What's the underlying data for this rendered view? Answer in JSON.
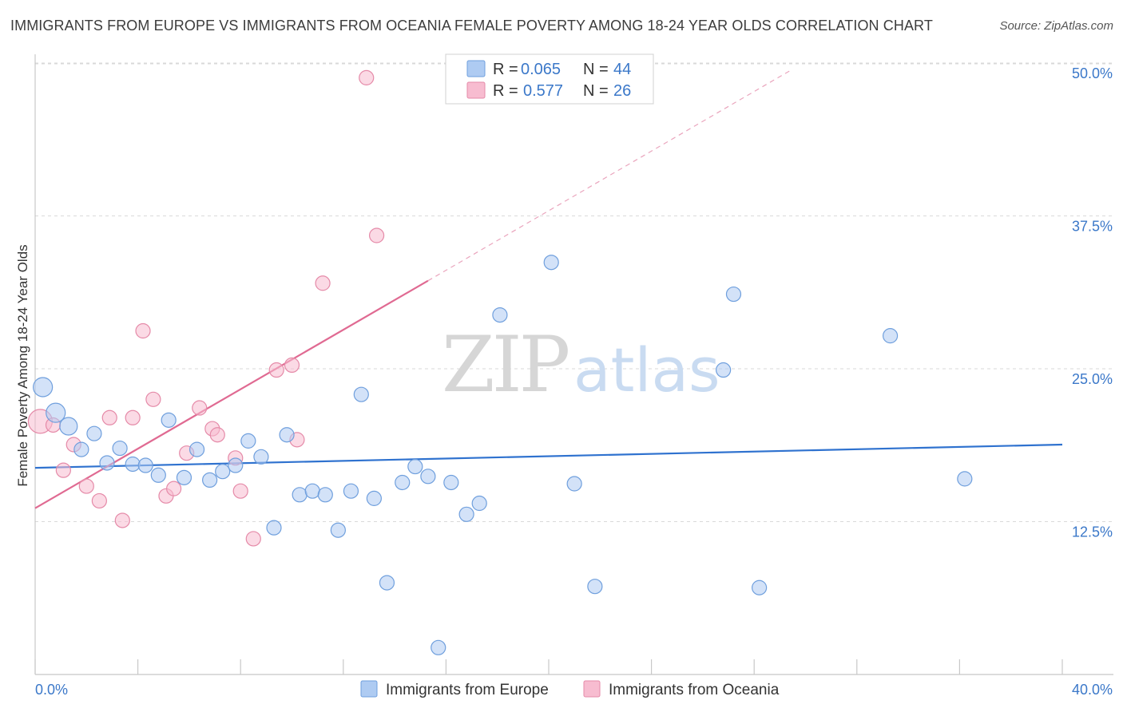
{
  "title": "IMMIGRANTS FROM EUROPE VS IMMIGRANTS FROM OCEANIA FEMALE POVERTY AMONG 18-24 YEAR OLDS CORRELATION CHART",
  "source": "Source: ZipAtlas.com",
  "watermark": {
    "part1": "ZIP",
    "part2": "atlas"
  },
  "colors": {
    "europe_fill": "#aecbf2",
    "europe_stroke": "#6f9fdd",
    "europe_line": "#2f72cf",
    "oceania_fill": "#f7bcd0",
    "oceania_stroke": "#e58aa8",
    "oceania_line": "#e06a92",
    "grid": "#d9d9d9",
    "axis_text": "#3b78c9"
  },
  "legend": {
    "rows": [
      {
        "r_label": "R =",
        "r_value": "0.065",
        "n_label": "N =",
        "n_value": "44"
      },
      {
        "r_label": "R =",
        "r_value": "0.577",
        "n_label": "N =",
        "n_value": "26"
      }
    ]
  },
  "bottom_legend": [
    "Immigrants from Europe",
    "Immigrants from Oceania"
  ],
  "chart_data": {
    "type": "scatter",
    "title": "IMMIGRANTS FROM EUROPE VS IMMIGRANTS FROM OCEANIA FEMALE POVERTY AMONG 18-24 YEAR OLDS CORRELATION CHART",
    "xlabel": "",
    "ylabel": "Female Poverty Among 18-24 Year Olds",
    "xlim": [
      0,
      40
    ],
    "ylim": [
      0,
      50
    ],
    "x_tick_labels": [
      "0.0%",
      "40.0%"
    ],
    "y_ticks": [
      12.5,
      25.0,
      37.5,
      50.0
    ],
    "y_tick_labels": [
      "12.5%",
      "25.0%",
      "37.5%",
      "50.0%"
    ],
    "grid": true,
    "series": [
      {
        "name": "Immigrants from Europe",
        "r": 0.065,
        "n": 44,
        "trend": {
          "x": [
            0,
            40
          ],
          "y": [
            16.9,
            18.8
          ]
        },
        "points": [
          [
            0.3,
            23.5,
            24
          ],
          [
            0.8,
            21.4,
            24
          ],
          [
            1.3,
            20.3,
            22
          ],
          [
            1.8,
            18.4,
            18
          ],
          [
            2.3,
            19.7,
            18
          ],
          [
            2.8,
            17.3,
            18
          ],
          [
            3.3,
            18.5,
            18
          ],
          [
            3.8,
            17.2,
            18
          ],
          [
            4.3,
            17.1,
            18
          ],
          [
            4.8,
            16.3,
            18
          ],
          [
            5.2,
            20.8,
            18
          ],
          [
            5.8,
            16.1,
            18
          ],
          [
            6.3,
            18.4,
            18
          ],
          [
            6.8,
            15.9,
            18
          ],
          [
            7.3,
            16.6,
            18
          ],
          [
            7.8,
            17.1,
            18
          ],
          [
            8.3,
            19.1,
            18
          ],
          [
            8.8,
            17.8,
            18
          ],
          [
            9.3,
            12.0,
            18
          ],
          [
            9.8,
            19.6,
            18
          ],
          [
            10.3,
            14.7,
            18
          ],
          [
            10.8,
            15.0,
            18
          ],
          [
            11.3,
            14.7,
            18
          ],
          [
            11.8,
            11.8,
            18
          ],
          [
            12.3,
            15.0,
            18
          ],
          [
            12.7,
            22.9,
            18
          ],
          [
            13.2,
            14.4,
            18
          ],
          [
            13.7,
            7.5,
            18
          ],
          [
            14.3,
            15.7,
            18
          ],
          [
            14.8,
            17.0,
            18
          ],
          [
            15.3,
            16.2,
            18
          ],
          [
            15.7,
            2.2,
            18
          ],
          [
            16.2,
            15.7,
            18
          ],
          [
            16.8,
            13.1,
            18
          ],
          [
            17.3,
            14.0,
            18
          ],
          [
            18.1,
            29.4,
            18
          ],
          [
            20.1,
            33.7,
            18
          ],
          [
            21.0,
            15.6,
            18
          ],
          [
            21.8,
            7.2,
            18
          ],
          [
            26.8,
            24.9,
            18
          ],
          [
            27.2,
            31.1,
            18
          ],
          [
            28.2,
            7.1,
            18
          ],
          [
            33.3,
            27.7,
            18
          ],
          [
            36.2,
            16.0,
            18
          ]
        ]
      },
      {
        "name": "Immigrants from Oceania",
        "r": 0.577,
        "n": 26,
        "trend": {
          "x": [
            0,
            15.3
          ],
          "y": [
            13.6,
            32.2
          ]
        },
        "trend_extension": {
          "x": [
            15.3,
            29.5
          ],
          "y": [
            32.2,
            49.5
          ]
        },
        "points": [
          [
            0.2,
            20.7,
            30
          ],
          [
            0.7,
            20.4,
            18
          ],
          [
            1.1,
            16.7,
            18
          ],
          [
            1.5,
            18.8,
            18
          ],
          [
            2.0,
            15.4,
            18
          ],
          [
            2.5,
            14.2,
            18
          ],
          [
            2.9,
            21.0,
            18
          ],
          [
            3.4,
            12.6,
            18
          ],
          [
            3.8,
            21.0,
            18
          ],
          [
            4.2,
            28.1,
            18
          ],
          [
            4.6,
            22.5,
            18
          ],
          [
            5.1,
            14.6,
            18
          ],
          [
            5.4,
            15.2,
            18
          ],
          [
            5.9,
            18.1,
            18
          ],
          [
            6.4,
            21.8,
            18
          ],
          [
            6.9,
            20.1,
            18
          ],
          [
            7.1,
            19.6,
            18
          ],
          [
            7.8,
            17.7,
            18
          ],
          [
            8.0,
            15.0,
            18
          ],
          [
            8.5,
            11.1,
            18
          ],
          [
            9.4,
            24.9,
            18
          ],
          [
            10.0,
            25.3,
            18
          ],
          [
            10.2,
            19.2,
            18
          ],
          [
            11.2,
            32.0,
            18
          ],
          [
            12.9,
            48.8,
            18
          ],
          [
            13.3,
            35.9,
            18
          ]
        ]
      }
    ]
  }
}
